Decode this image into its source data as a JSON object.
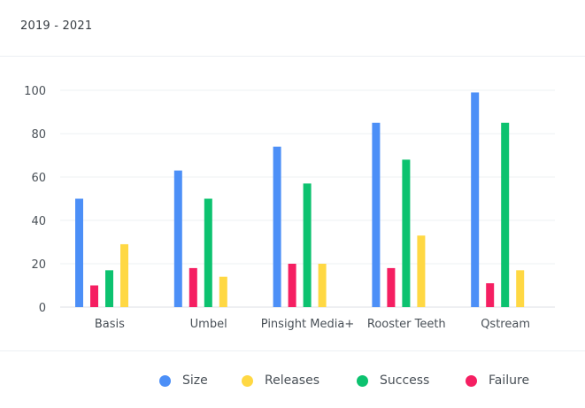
{
  "header": {
    "title": "2019 - 2021"
  },
  "chart_data": {
    "type": "bar",
    "title": "",
    "xlabel": "",
    "ylabel": "",
    "ylim": [
      0,
      100
    ],
    "yticks": [
      0,
      20,
      40,
      60,
      80,
      100
    ],
    "grid": true,
    "legend_position": "bottom",
    "categories": [
      "Basis",
      "Umbel",
      "Pinsight Media+",
      "Rooster Teeth",
      "Qstream"
    ],
    "series": [
      {
        "name": "Size",
        "color": "#4c8ff7",
        "values": [
          50,
          63,
          74,
          85,
          99
        ]
      },
      {
        "name": "Failure",
        "color": "#f51f62",
        "values": [
          10,
          18,
          20,
          18,
          11
        ]
      },
      {
        "name": "Success",
        "color": "#0cc26f",
        "values": [
          17,
          50,
          57,
          68,
          85
        ]
      },
      {
        "name": "Releases",
        "color": "#ffd843",
        "values": [
          29,
          14,
          20,
          33,
          17
        ]
      }
    ],
    "legend_order": [
      "Size",
      "Releases",
      "Success",
      "Failure"
    ]
  }
}
